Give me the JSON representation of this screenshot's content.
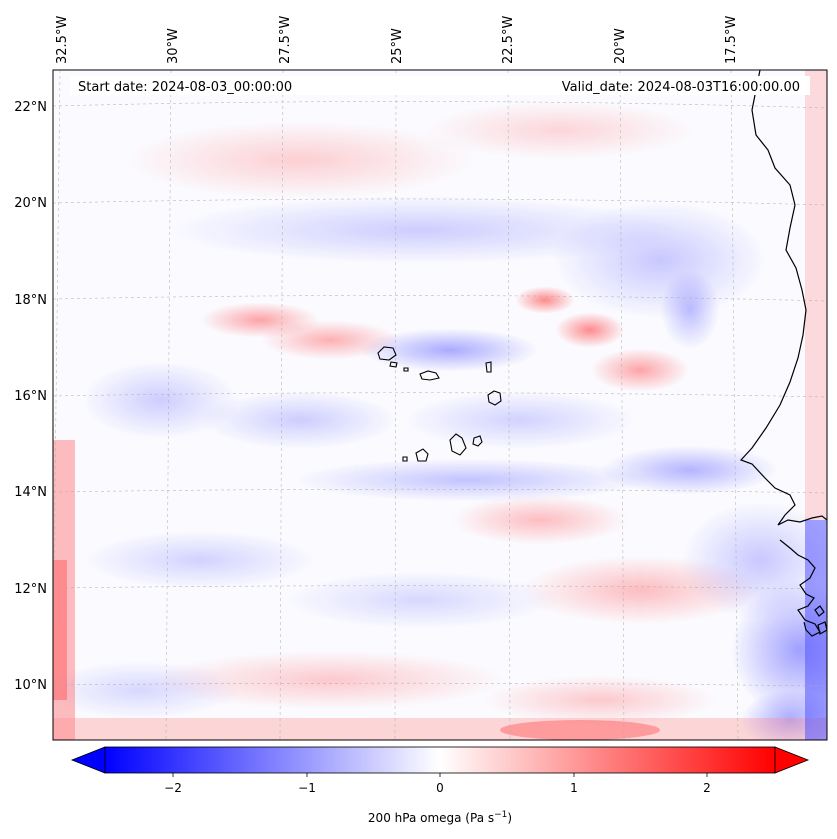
{
  "map": {
    "start_label": "Start date: 2024-08-03_00:00:00",
    "valid_label": "Valid_date: 2024-08-03T16:00:00.00",
    "lon_ticks": [
      "32.5°W",
      "30°W",
      "27.5°W",
      "25°W",
      "22.5°W",
      "20°W",
      "17.5°W"
    ],
    "lat_ticks": [
      "22°N",
      "20°N",
      "18°N",
      "16°N",
      "14°N",
      "12°N",
      "10°N"
    ],
    "colors": {
      "negative": "#0000ff",
      "zero": "#ffffff",
      "positive": "#ff0000",
      "coastline": "#000000"
    }
  },
  "colorbar": {
    "ticks": [
      "−2",
      "−1",
      "0",
      "1",
      "2"
    ],
    "label_main": "200 hPa omega (Pa s",
    "label_exp": "−1",
    "label_close": ")"
  }
}
